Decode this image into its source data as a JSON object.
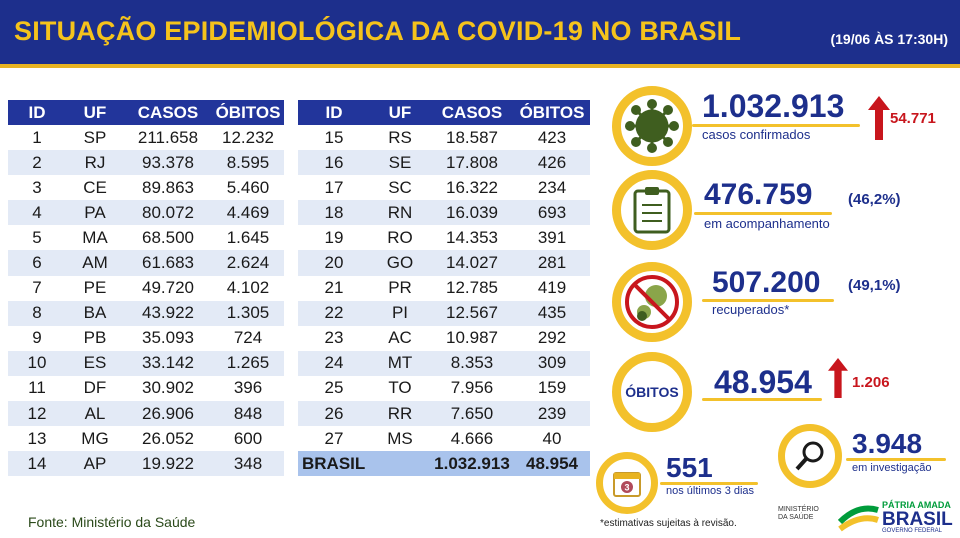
{
  "header": {
    "title": "SITUAÇÃO EPIDEMIOLÓGICA DA COVID-19 NO BRASIL",
    "stamp": "(19/06 ÀS 17:30H)"
  },
  "table": {
    "headers": [
      "ID",
      "UF",
      "CASOS",
      "ÓBITOS"
    ],
    "left": [
      [
        "1",
        "SP",
        "211.658",
        "12.232"
      ],
      [
        "2",
        "RJ",
        "93.378",
        "8.595"
      ],
      [
        "3",
        "CE",
        "89.863",
        "5.460"
      ],
      [
        "4",
        "PA",
        "80.072",
        "4.469"
      ],
      [
        "5",
        "MA",
        "68.500",
        "1.645"
      ],
      [
        "6",
        "AM",
        "61.683",
        "2.624"
      ],
      [
        "7",
        "PE",
        "49.720",
        "4.102"
      ],
      [
        "8",
        "BA",
        "43.922",
        "1.305"
      ],
      [
        "9",
        "PB",
        "35.093",
        "724"
      ],
      [
        "10",
        "ES",
        "33.142",
        "1.265"
      ],
      [
        "11",
        "DF",
        "30.902",
        "396"
      ],
      [
        "12",
        "AL",
        "26.906",
        "848"
      ],
      [
        "13",
        "MG",
        "26.052",
        "600"
      ],
      [
        "14",
        "AP",
        "19.922",
        "348"
      ]
    ],
    "right": [
      [
        "15",
        "RS",
        "18.587",
        "423"
      ],
      [
        "16",
        "SE",
        "17.808",
        "426"
      ],
      [
        "17",
        "SC",
        "16.322",
        "234"
      ],
      [
        "18",
        "RN",
        "16.039",
        "693"
      ],
      [
        "19",
        "RO",
        "14.353",
        "391"
      ],
      [
        "20",
        "GO",
        "14.027",
        "281"
      ],
      [
        "21",
        "PR",
        "12.785",
        "419"
      ],
      [
        "22",
        "PI",
        "12.567",
        "435"
      ],
      [
        "23",
        "AC",
        "10.987",
        "292"
      ],
      [
        "24",
        "MT",
        "8.353",
        "309"
      ],
      [
        "25",
        "TO",
        "7.956",
        "159"
      ],
      [
        "26",
        "RR",
        "7.650",
        "239"
      ],
      [
        "27",
        "MS",
        "4.666",
        "40"
      ]
    ],
    "total": {
      "label": "BRASIL",
      "cases": "1.032.913",
      "deaths": "48.954"
    }
  },
  "stats": {
    "confirmed": {
      "value": "1.032.913",
      "label": "casos confirmados",
      "delta": "54.771"
    },
    "monitoring": {
      "value": "476.759",
      "pct": "(46,2%)",
      "label": "em acompanhamento"
    },
    "recovered": {
      "value": "507.200",
      "pct": "(49,1%)",
      "label": "recuperados*"
    },
    "deaths": {
      "badge": "ÓBITOS",
      "value": "48.954",
      "delta": "1.206"
    },
    "investigation": {
      "value": "3.948",
      "label": "em investigação"
    },
    "last3": {
      "value": "551",
      "label": "nos últimos 3 dias",
      "cal_day": "3"
    }
  },
  "footer": {
    "source": "Fonte: Ministério da Saúde",
    "note": "*estimativas sujeitas à revisão.",
    "ministry": "MINISTÉRIO DA SAÚDE",
    "patria": "PÁTRIA AMADA",
    "brasil": "BRASIL",
    "gov": "GOVERNO FEDERAL"
  },
  "colors": {
    "navy": "#1d2f8c",
    "yellow": "#f3c12b",
    "red": "#c8161d",
    "alt_row": "#e3eaf6",
    "total_row": "#a9c3ec"
  }
}
